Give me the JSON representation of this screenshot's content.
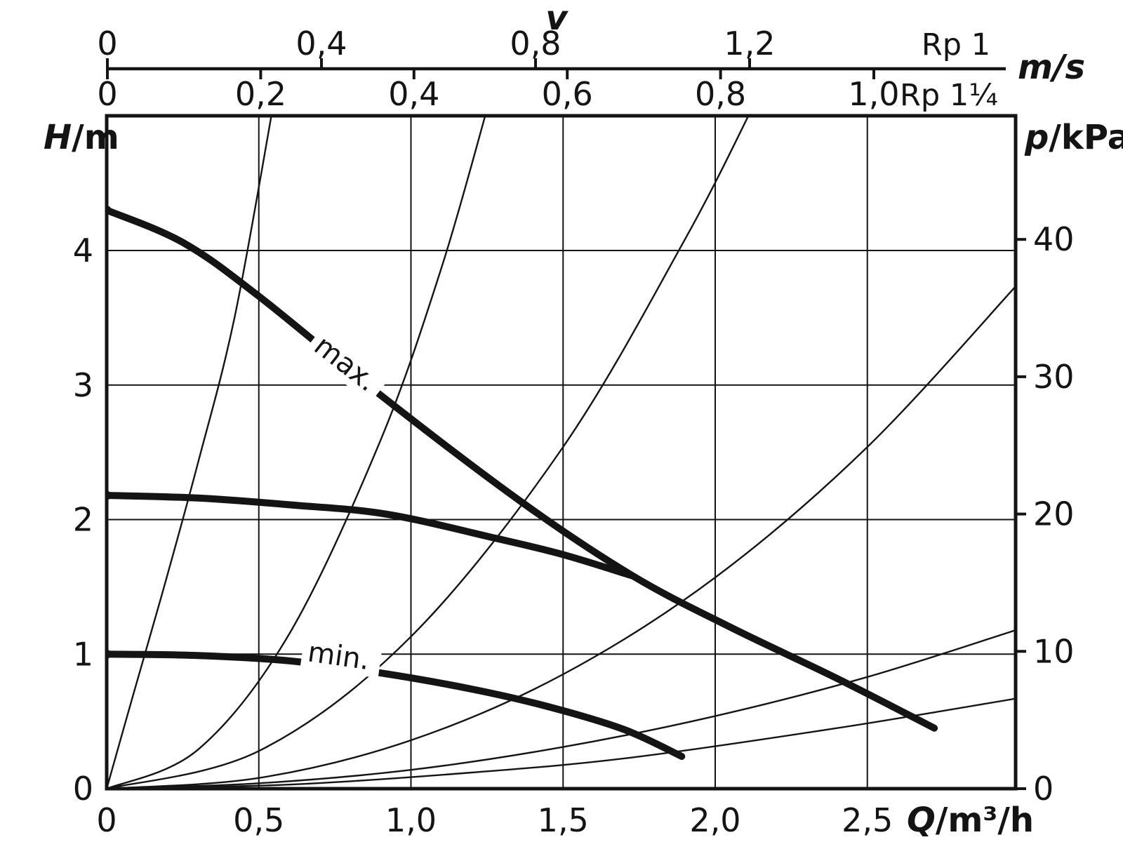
{
  "page": {
    "background": "#ffffff",
    "ink": "#141414"
  },
  "top_axis": {
    "title": "v",
    "unit": "m/s",
    "upper_scale": {
      "pipe_label": "Rp 1",
      "tick_labels": [
        "0",
        "0,4",
        "0,8",
        "1,2"
      ],
      "tick_values": [
        0,
        0.4,
        0.8,
        1.2
      ]
    },
    "lower_scale": {
      "pipe_label": "Rp 1¼",
      "tick_labels": [
        "0",
        "0,2",
        "0,4",
        "0,6",
        "0,8",
        "1,0"
      ],
      "tick_values": [
        0,
        0.2,
        0.4,
        0.6,
        0.8,
        1.0
      ]
    }
  },
  "y_left_axis": {
    "symbol": "H",
    "unit": "/m",
    "tick_labels": [
      "4",
      "3",
      "2",
      "1",
      "0"
    ],
    "tick_values": [
      4,
      3,
      2,
      1,
      0
    ]
  },
  "y_right_axis": {
    "symbol": "p",
    "unit": "/kPa",
    "tick_labels": [
      "40",
      "30",
      "20",
      "10",
      "0"
    ],
    "tick_values": [
      40,
      30,
      20,
      10,
      0
    ]
  },
  "x_axis": {
    "symbol": "Q",
    "unit": "/m³/h",
    "tick_labels": [
      "0",
      "0,5",
      "1,0",
      "1,5",
      "2,0",
      "2,5"
    ],
    "tick_values": [
      0,
      0.5,
      1.0,
      1.5,
      2.0,
      2.5
    ]
  },
  "curve_labels": {
    "max": "max.",
    "min": "min."
  },
  "chart_data": {
    "type": "line",
    "xlabel": "Q/m³/h",
    "ylabel_left": "H/m",
    "ylabel_right": "p/kPa",
    "top_axis_label": "v (m/s) for Rp 1 and Rp 1¼",
    "x_range": [
      0,
      3.0
    ],
    "y_range_H": [
      0,
      5.0
    ],
    "y_range_kPa": [
      0,
      49
    ],
    "grid": true,
    "legend_position": "none",
    "pump_curves": [
      {
        "name": "max",
        "points_QH": [
          [
            0,
            4.3
          ],
          [
            0.25,
            4.06
          ],
          [
            0.5,
            3.66
          ],
          [
            0.92,
            2.89
          ],
          [
            1.37,
            2.12
          ],
          [
            1.73,
            1.58
          ],
          [
            2.05,
            1.2
          ],
          [
            2.4,
            0.82
          ],
          [
            2.72,
            0.45
          ]
        ]
      },
      {
        "name": "mid",
        "points_QH": [
          [
            0,
            2.18
          ],
          [
            0.3,
            2.16
          ],
          [
            0.6,
            2.11
          ],
          [
            0.92,
            2.04
          ],
          [
            1.28,
            1.86
          ],
          [
            1.5,
            1.74
          ],
          [
            1.73,
            1.58
          ]
        ]
      },
      {
        "name": "min",
        "points_QH": [
          [
            0,
            1.0
          ],
          [
            0.3,
            0.99
          ],
          [
            0.6,
            0.95
          ],
          [
            0.9,
            0.86
          ],
          [
            1.2,
            0.74
          ],
          [
            1.45,
            0.61
          ],
          [
            1.7,
            0.44
          ],
          [
            1.89,
            0.24
          ]
        ]
      }
    ],
    "pipe_friction_curves": [
      {
        "points_QH": [
          [
            0,
            0
          ],
          [
            0.09,
            0.72
          ],
          [
            0.18,
            1.43
          ],
          [
            0.3,
            2.42
          ],
          [
            0.42,
            3.5
          ],
          [
            0.545,
            5.05
          ]
        ]
      },
      {
        "points_QH": [
          [
            0,
            0
          ],
          [
            0.3,
            0.29
          ],
          [
            0.6,
            1.15
          ],
          [
            0.9,
            2.59
          ],
          [
            1.1,
            3.87
          ],
          [
            1.25,
            5.05
          ]
        ]
      },
      {
        "points_QH": [
          [
            0,
            0
          ],
          [
            0.5,
            0.28
          ],
          [
            1.0,
            1.13
          ],
          [
            1.5,
            2.54
          ],
          [
            1.9,
            4.08
          ],
          [
            2.12,
            5.05
          ]
        ]
      },
      {
        "points_QH": [
          [
            0,
            0
          ],
          [
            0.5,
            0.08
          ],
          [
            1.0,
            0.36
          ],
          [
            1.5,
            0.85
          ],
          [
            2.0,
            1.57
          ],
          [
            2.5,
            2.54
          ],
          [
            2.99,
            3.74
          ]
        ]
      },
      {
        "points_QH": [
          [
            0,
            0
          ],
          [
            0.5,
            0.04
          ],
          [
            1.0,
            0.14
          ],
          [
            1.5,
            0.31
          ],
          [
            2.0,
            0.54
          ],
          [
            2.5,
            0.83
          ],
          [
            2.99,
            1.18
          ]
        ]
      },
      {
        "points_QH": [
          [
            0,
            0
          ],
          [
            0.6,
            0.03
          ],
          [
            1.2,
            0.12
          ],
          [
            1.72,
            0.23
          ],
          [
            2.4,
            0.45
          ],
          [
            2.99,
            0.67
          ]
        ]
      }
    ]
  }
}
